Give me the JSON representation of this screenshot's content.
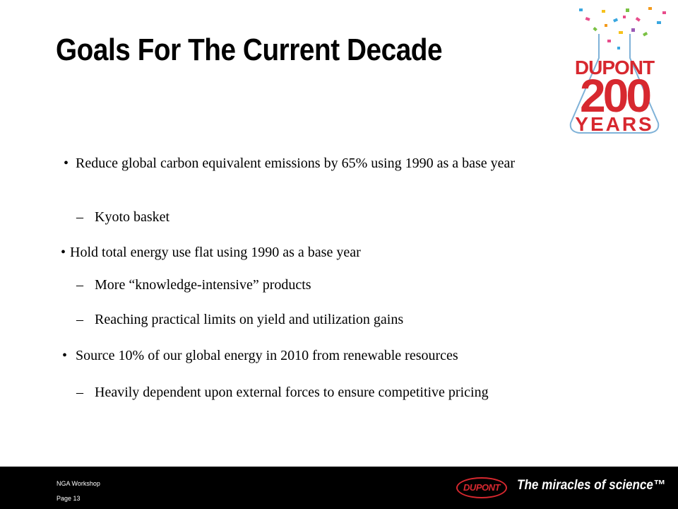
{
  "slide": {
    "title": "Goals For The Current Decade"
  },
  "logo": {
    "line1": "DUPONT",
    "line2": "200",
    "line3": "YEARS"
  },
  "bullets": {
    "bullet_char": "•",
    "dash_char": "–",
    "item1": "Reduce global carbon equivalent emissions by 65% using 1990 as a base year",
    "item1_sub1": "Kyoto basket",
    "item2": "Hold total energy use flat using 1990 as a base year",
    "item2_sub1": "More “knowledge-intensive” products",
    "item2_sub2": "Reaching practical limits on yield and utilization gains",
    "item3": "Source 10% of our global energy in 2010 from renewable resources",
    "item3_sub1": "Heavily dependent upon external forces to ensure competitive pricing"
  },
  "footer": {
    "workshop": "NGA Workshop",
    "page": "Page 13",
    "brand": "DUPONT",
    "tagline": "The miracles of science™"
  },
  "colors": {
    "brand_red": "#d7282f",
    "footer_bg": "#000000"
  }
}
